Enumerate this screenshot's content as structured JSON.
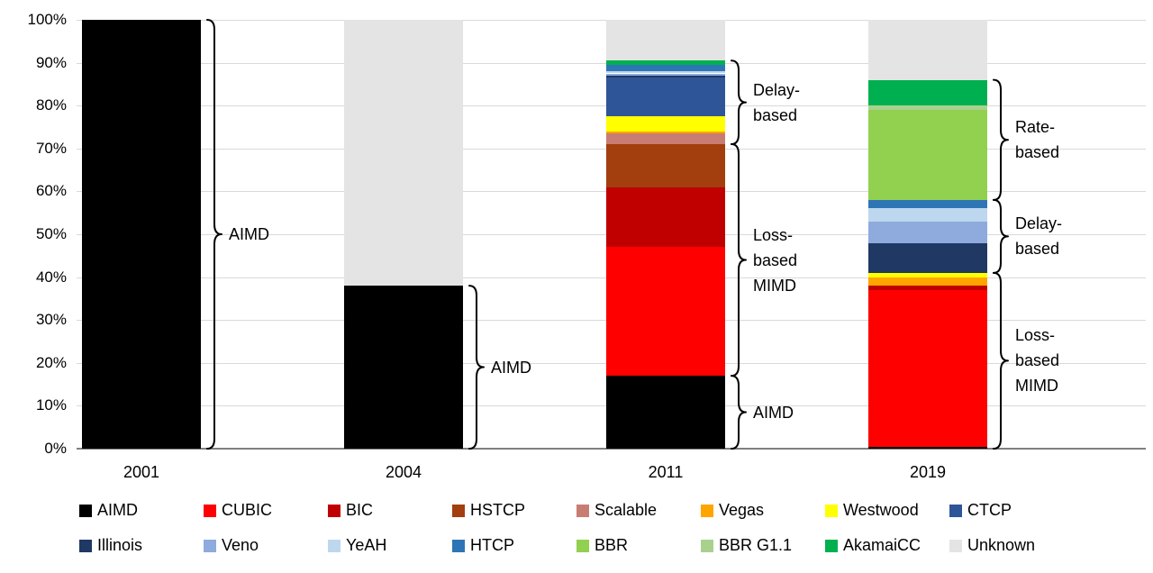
{
  "colors": {
    "background": "#FFFFFF",
    "gridline": "#D9D9D9",
    "axis_line": "#808080",
    "text": "#000000",
    "brace": "#000000"
  },
  "chart_data": {
    "type": "bar",
    "stacked": true,
    "title": "",
    "xlabel": "",
    "ylabel": "",
    "categories": [
      "2001",
      "2004",
      "2011",
      "2019"
    ],
    "yticks": [
      "0%",
      "10%",
      "20%",
      "30%",
      "40%",
      "50%",
      "60%",
      "70%",
      "80%",
      "90%",
      "100%"
    ],
    "ylim": [
      0,
      100
    ],
    "grid": true,
    "legend_position": "bottom",
    "legend_rows": 2,
    "series": [
      {
        "name": "AIMD",
        "color": "#000000",
        "values": [
          100,
          38,
          17,
          0.5
        ]
      },
      {
        "name": "CUBIC",
        "color": "#FF0000",
        "values": [
          0,
          0,
          30,
          36.5
        ]
      },
      {
        "name": "BIC",
        "color": "#C00000",
        "values": [
          0,
          0,
          14,
          1
        ]
      },
      {
        "name": "HSTCP",
        "color": "#A33E0F",
        "values": [
          0,
          0,
          10,
          0
        ]
      },
      {
        "name": "Scalable",
        "color": "#C87D72",
        "values": [
          0,
          0,
          2.5,
          0
        ]
      },
      {
        "name": "Vegas",
        "color": "#FFA500",
        "values": [
          0,
          0,
          0.5,
          2
        ]
      },
      {
        "name": "Westwood",
        "color": "#FFFF00",
        "values": [
          0,
          0,
          3.5,
          1
        ]
      },
      {
        "name": "CTCP",
        "color": "#2E5597",
        "values": [
          0,
          0,
          9,
          0
        ]
      },
      {
        "name": "Illinois",
        "color": "#1F3864",
        "values": [
          0,
          0,
          0.5,
          7
        ]
      },
      {
        "name": "Veno",
        "color": "#8FAADC",
        "values": [
          0,
          0,
          0.5,
          5
        ]
      },
      {
        "name": "YeAH",
        "color": "#BDD7EE",
        "values": [
          0,
          0,
          0.5,
          3
        ]
      },
      {
        "name": "HTCP",
        "color": "#2E75B6",
        "values": [
          0,
          0,
          1.5,
          2
        ]
      },
      {
        "name": "BBR",
        "color": "#92D050",
        "values": [
          0,
          0,
          0,
          21
        ]
      },
      {
        "name": "BBR G1.1",
        "color": "#A9D18E",
        "values": [
          0,
          0,
          0,
          1
        ]
      },
      {
        "name": "AkamaiCC",
        "color": "#00B050",
        "values": [
          0,
          0,
          1,
          6
        ]
      },
      {
        "name": "Unknown",
        "color": "#E4E4E4",
        "values": [
          0,
          62,
          9.5,
          14
        ]
      }
    ],
    "annotations": [
      {
        "bar": 0,
        "from": 0,
        "to": 100,
        "lines": [
          "AIMD"
        ]
      },
      {
        "bar": 1,
        "from": 0,
        "to": 38,
        "lines": [
          "AIMD"
        ]
      },
      {
        "bar": 2,
        "from": 0,
        "to": 17,
        "lines": [
          "AIMD"
        ]
      },
      {
        "bar": 2,
        "from": 17,
        "to": 71,
        "lines": [
          "Loss-",
          "based",
          "MIMD"
        ]
      },
      {
        "bar": 2,
        "from": 71,
        "to": 90.5,
        "lines": [
          "Delay-",
          "based"
        ]
      },
      {
        "bar": 3,
        "from": 0,
        "to": 41,
        "lines": [
          "Loss-",
          "based",
          "MIMD"
        ]
      },
      {
        "bar": 3,
        "from": 41,
        "to": 58,
        "lines": [
          "Delay-",
          "based"
        ]
      },
      {
        "bar": 3,
        "from": 58,
        "to": 86,
        "lines": [
          "Rate-",
          "based"
        ]
      }
    ]
  }
}
